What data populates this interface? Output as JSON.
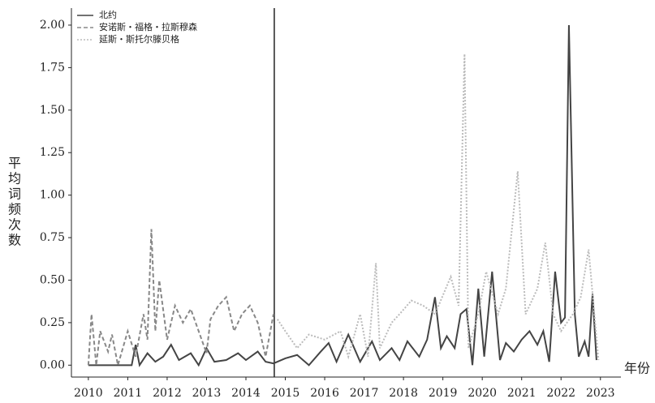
{
  "chart_data": {
    "type": "line",
    "y_label": "平均词频次数",
    "x_label": "年份",
    "xlim": [
      2009.57,
      2023.52
    ],
    "ylim": [
      -0.07,
      2.1
    ],
    "xticks": [
      2010,
      2011,
      2012,
      2013,
      2014,
      2015,
      2016,
      2017,
      2018,
      2019,
      2020,
      2021,
      2022,
      2023
    ],
    "yticks": [
      {
        "value": 0,
        "label": "0.00"
      },
      {
        "value": 0.25,
        "label": "0.25"
      },
      {
        "value": 0.5,
        "label": "0.50"
      },
      {
        "value": 0.75,
        "label": "0.75"
      },
      {
        "value": 1,
        "label": "1.00"
      },
      {
        "value": 1.25,
        "label": "1.25"
      },
      {
        "value": 1.5,
        "label": "1.50"
      },
      {
        "value": 1.75,
        "label": "1.75"
      },
      {
        "value": 2,
        "label": "2.00"
      }
    ],
    "vline": 2014.72,
    "legend": "top-left",
    "series": [
      {
        "name": "北约",
        "color": "#444444",
        "dash": "solid",
        "x": [
          2010,
          2011.1,
          2011.2,
          2011.3,
          2011.5,
          2011.7,
          2011.9,
          2012.1,
          2012.3,
          2012.6,
          2012.8,
          2013.0,
          2013.2,
          2013.5,
          2013.8,
          2014.0,
          2014.3,
          2014.5,
          2014.7,
          2015.0,
          2015.3,
          2015.6,
          2015.9,
          2016.1,
          2016.3,
          2016.6,
          2016.9,
          2017.2,
          2017.4,
          2017.7,
          2017.9,
          2018.1,
          2018.4,
          2018.6,
          2018.8,
          2018.95,
          2019.1,
          2019.3,
          2019.45,
          2019.6,
          2019.75,
          2019.9,
          2020.05,
          2020.25,
          2020.45,
          2020.6,
          2020.8,
          2021.0,
          2021.2,
          2021.4,
          2021.55,
          2021.7,
          2021.85,
          2022.0,
          2022.1,
          2022.2,
          2022.35,
          2022.45,
          2022.6,
          2022.7,
          2022.8,
          2022.9
        ],
        "values": [
          0,
          0,
          0.12,
          0,
          0.07,
          0.02,
          0.05,
          0.12,
          0.03,
          0.07,
          0.0,
          0.1,
          0.02,
          0.03,
          0.07,
          0.03,
          0.08,
          0.02,
          0.01,
          0.04,
          0.06,
          0.0,
          0.08,
          0.13,
          0.02,
          0.18,
          0.02,
          0.14,
          0.03,
          0.1,
          0.03,
          0.14,
          0.05,
          0.15,
          0.4,
          0.1,
          0.17,
          0.1,
          0.3,
          0.33,
          0.0,
          0.45,
          0.05,
          0.55,
          0.03,
          0.13,
          0.08,
          0.15,
          0.2,
          0.12,
          0.2,
          0.02,
          0.55,
          0.25,
          0.28,
          2.0,
          0.3,
          0.05,
          0.14,
          0.05,
          0.42,
          0.03
        ]
      },
      {
        "name": "安诺斯・福格・拉斯穆森",
        "color": "#888888",
        "dash": "dashed",
        "x": [
          2010,
          2010.08,
          2010.2,
          2010.3,
          2010.5,
          2010.6,
          2010.75,
          2011.0,
          2011.2,
          2011.4,
          2011.5,
          2011.6,
          2011.7,
          2011.8,
          2012.0,
          2012.2,
          2012.4,
          2012.6,
          2012.8,
          2013.0,
          2013.1,
          2013.3,
          2013.5,
          2013.7,
          2013.9,
          2014.1,
          2014.3,
          2014.5,
          2014.7
        ],
        "values": [
          0,
          0.3,
          0,
          0.2,
          0.08,
          0.18,
          0,
          0.2,
          0.05,
          0.3,
          0.15,
          0.8,
          0.2,
          0.5,
          0.15,
          0.35,
          0.25,
          0.33,
          0.2,
          0.07,
          0.27,
          0.35,
          0.4,
          0.2,
          0.3,
          0.35,
          0.25,
          0.05,
          0.3
        ]
      },
      {
        "name": "延斯・斯托尔滕贝格",
        "color": "#bbbbbb",
        "dash": "dotted",
        "x": [
          2014.8,
          2015.0,
          2015.3,
          2015.6,
          2016.0,
          2016.4,
          2016.6,
          2016.9,
          2017.1,
          2017.3,
          2017.4,
          2017.7,
          2017.9,
          2018.2,
          2018.5,
          2018.8,
          2019.2,
          2019.4,
          2019.55,
          2019.65,
          2019.9,
          2020.1,
          2020.4,
          2020.6,
          2020.9,
          2021.1,
          2021.4,
          2021.6,
          2021.8,
          2022.0,
          2022.3,
          2022.5,
          2022.7,
          2022.95
        ],
        "values": [
          0.27,
          0.2,
          0.1,
          0.18,
          0.15,
          0.2,
          0.05,
          0.3,
          0.05,
          0.6,
          0.1,
          0.25,
          0.3,
          0.38,
          0.35,
          0.3,
          0.52,
          0.35,
          1.83,
          0.1,
          0.3,
          0.55,
          0.3,
          0.45,
          1.14,
          0.3,
          0.45,
          0.72,
          0.3,
          0.2,
          0.3,
          0.4,
          0.68,
          0.03
        ]
      }
    ]
  }
}
